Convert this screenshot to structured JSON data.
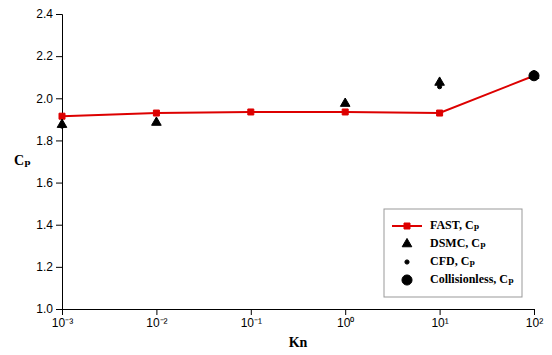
{
  "chart_data": {
    "type": "line",
    "x_label": "Kn",
    "y_label": "Cₚ",
    "log": "x",
    "grid": false,
    "legend": "lower right",
    "xlim": [
      0.001,
      100
    ],
    "xticks": [
      {
        "value": 0.001,
        "label": "10⁻³"
      },
      {
        "value": 0.01,
        "label": "10⁻²"
      },
      {
        "value": 0.1,
        "label": "10⁻¹"
      },
      {
        "value": 1,
        "label": "10⁰"
      },
      {
        "value": 10,
        "label": "10¹"
      },
      {
        "value": 100,
        "label": "10²"
      }
    ],
    "ylim": [
      1.0,
      2.4
    ],
    "yticks": [
      {
        "value": 1.0,
        "label": "1.0"
      },
      1.2,
      1.4,
      1.6,
      1.8,
      {
        "value": 2.0,
        "label": "2.0"
      },
      2.2,
      2.4
    ],
    "series": [
      {
        "name": "FAST, Cₚ",
        "type": "line",
        "color": "#DD0000",
        "marker": "square",
        "line_style": "solid",
        "x": [
          0.001,
          0.01,
          0.1,
          1,
          10,
          100
        ],
        "values": [
          1.915,
          1.93,
          1.935,
          1.935,
          1.93,
          2.107
        ]
      },
      {
        "name": "DSMC, Cₚ",
        "type": "scatter",
        "color": "#000000",
        "marker": "triangle",
        "x": [
          0.001,
          0.01,
          1,
          10,
          100
        ],
        "values": [
          1.875,
          1.885,
          1.975,
          2.075,
          2.107
        ]
      },
      {
        "name": "CFD, Cₚ",
        "type": "scatter",
        "color": "#000000",
        "marker": "point",
        "x": [
          0.001,
          10
        ],
        "values": [
          1.868,
          2.055
        ]
      },
      {
        "name": "Collisionless, Cₚ",
        "type": "scatter",
        "color": "#000000",
        "marker": "circle",
        "x": [
          100
        ],
        "values": [
          2.107
        ]
      }
    ]
  }
}
